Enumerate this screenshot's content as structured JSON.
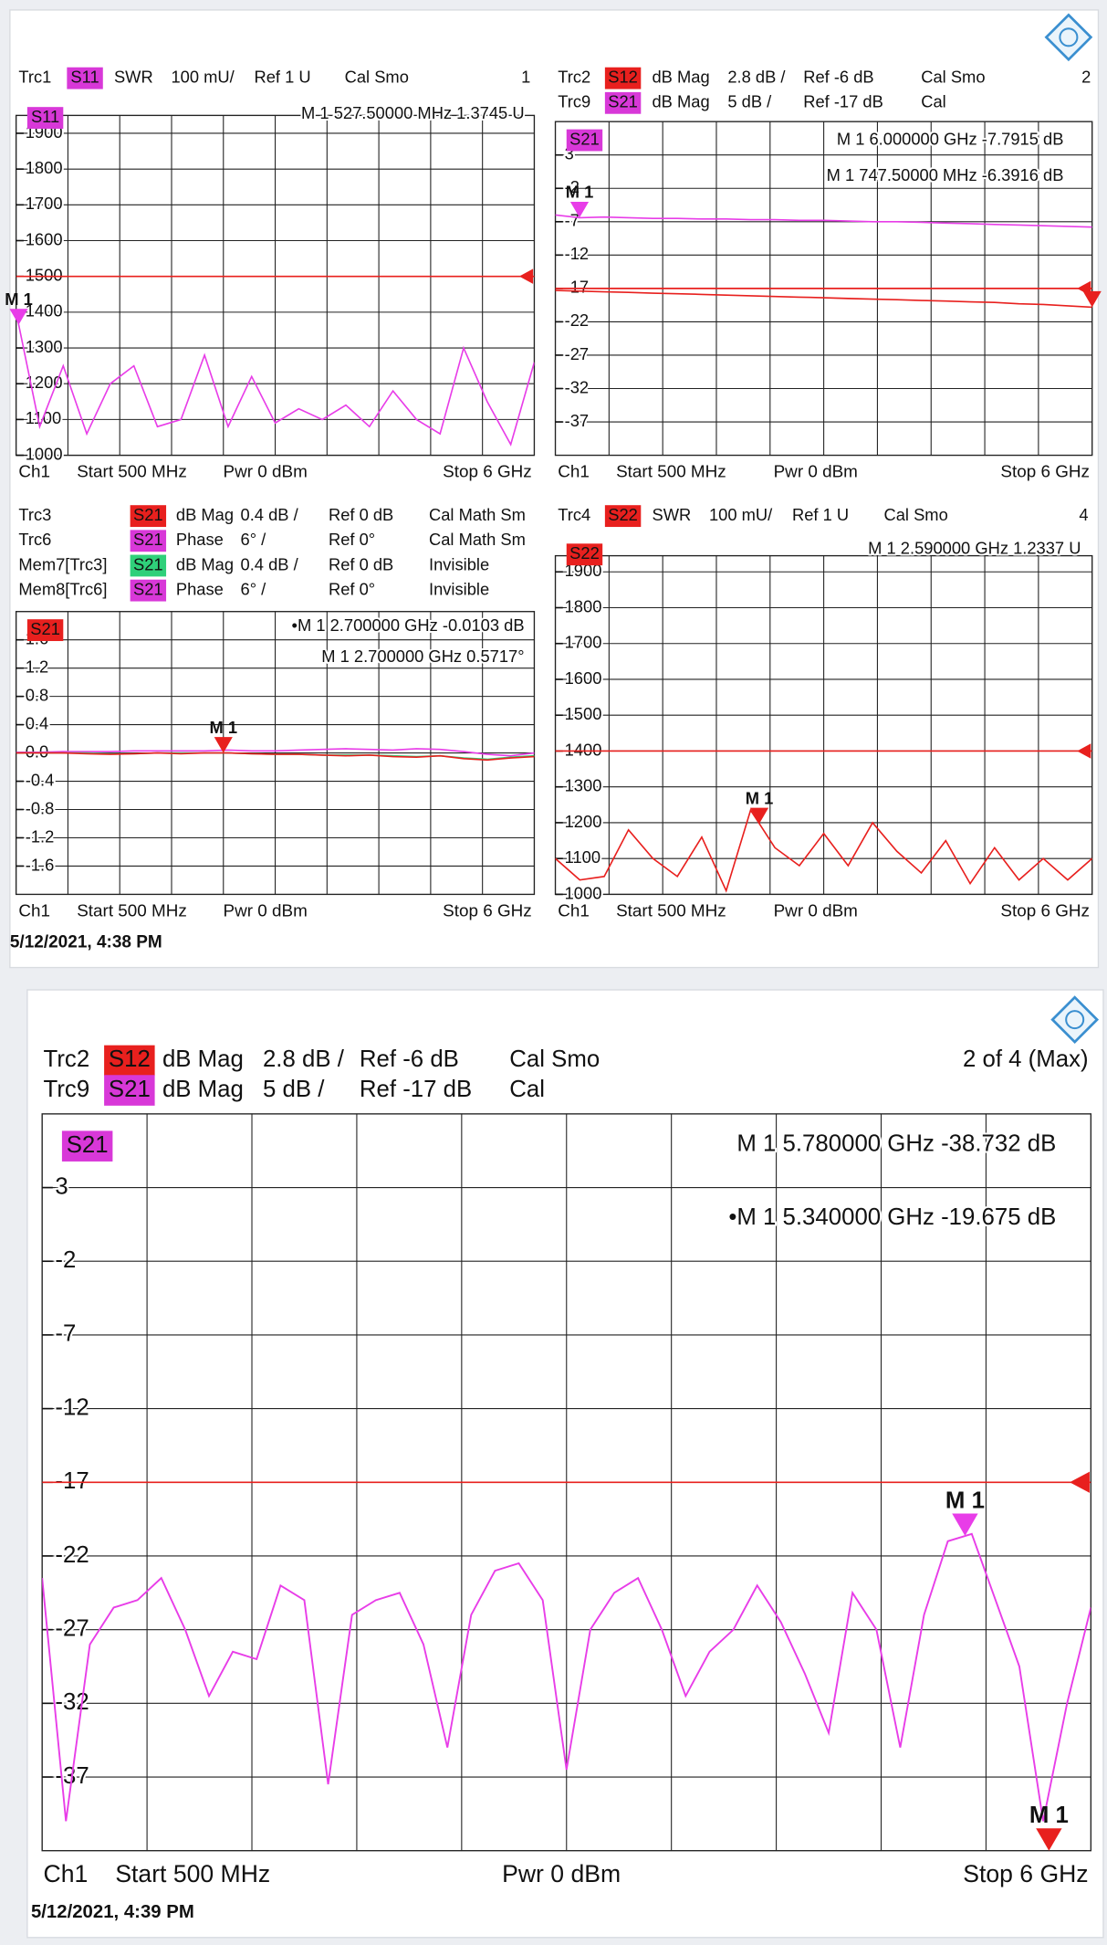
{
  "chart_data": [
    {
      "type": "line",
      "window": "1",
      "badge": "S11",
      "badge_color": "#d838d8",
      "traces": [
        {
          "name": "Trc1",
          "param": "S11",
          "color": "#d838d8",
          "format": "SWR",
          "scale": "100 mU/",
          "ref": "Ref 1 U",
          "status": "Cal Smo"
        }
      ],
      "xlim": [
        0.5,
        6
      ],
      "ylim": [
        1000,
        1950
      ],
      "yticks": [
        1900,
        1800,
        1700,
        1600,
        1500,
        1400,
        1300,
        1200,
        1100,
        1000
      ],
      "ref_line": 1500,
      "ref_color": "#e8201e",
      "x": [
        0.5,
        0.75,
        1,
        1.25,
        1.5,
        1.75,
        2,
        2.25,
        2.5,
        2.75,
        3,
        3.25,
        3.5,
        3.75,
        4,
        4.25,
        4.5,
        4.75,
        5,
        5.25,
        5.5,
        5.75,
        6
      ],
      "series": [
        {
          "color": "#e83de8",
          "values": [
            1400,
            1080,
            1250,
            1060,
            1200,
            1250,
            1080,
            1100,
            1280,
            1080,
            1220,
            1090,
            1130,
            1100,
            1140,
            1080,
            1180,
            1100,
            1060,
            1300,
            1150,
            1030,
            1260
          ]
        }
      ],
      "markers": [
        {
          "label": "M 1",
          "x": 0.5275,
          "color": "#e83de8"
        }
      ],
      "readouts": [
        {
          "text": "M 1 527.50000 MHz 1.3745 U",
          "color": "#e83de8"
        }
      ],
      "footer": {
        "channel": "Ch1",
        "start": "Start 500 MHz",
        "power": "Pwr 0 dBm",
        "stop": "Stop 6 GHz"
      }
    },
    {
      "type": "line",
      "window": "2",
      "badge": "S21",
      "badge_color": "#d838d8",
      "traces": [
        {
          "name": "Trc2",
          "param": "S12",
          "color": "#e8201e",
          "format": "dB Mag",
          "scale": "2.8 dB /",
          "ref": "Ref -6 dB",
          "status": "Cal Smo"
        },
        {
          "name": "Trc9",
          "param": "S21",
          "color": "#d838d8",
          "format": "dB Mag",
          "scale": "5 dB /",
          "ref": "Ref -17 dB",
          "status": "Cal"
        }
      ],
      "xlim": [
        0.5,
        6
      ],
      "ylim": [
        -42,
        8
      ],
      "yticks": [
        3,
        -2,
        -7,
        -12,
        -17,
        -22,
        -27,
        -32,
        -37
      ],
      "ref_line": -17,
      "ref_color": "#e8201e",
      "x": [
        0.5,
        0.75,
        1,
        1.25,
        1.5,
        1.75,
        2,
        2.25,
        2.5,
        2.75,
        3,
        3.25,
        3.5,
        3.75,
        4,
        4.25,
        4.5,
        4.75,
        5,
        5.25,
        5.5,
        5.75,
        6
      ],
      "series": [
        {
          "color": "#e8201e",
          "values": [
            -17.3,
            -17.4,
            -17.5,
            -17.6,
            -17.7,
            -17.8,
            -17.9,
            -18.0,
            -18.1,
            -18.2,
            -18.3,
            -18.4,
            -18.5,
            -18.6,
            -18.7,
            -18.8,
            -18.9,
            -19.0,
            -19.1,
            -19.3,
            -19.4,
            -19.6,
            -19.8
          ]
        },
        {
          "color": "#e83de8",
          "values": [
            -6.0,
            -6.4,
            -6.3,
            -6.4,
            -6.5,
            -6.5,
            -6.6,
            -6.6,
            -6.7,
            -6.7,
            -6.8,
            -6.8,
            -6.9,
            -7.0,
            -7.0,
            -7.1,
            -7.2,
            -7.3,
            -7.4,
            -7.5,
            -7.6,
            -7.7,
            -7.8
          ]
        }
      ],
      "markers": [
        {
          "label": "M 1",
          "x": 0.7475,
          "color": "#e83de8"
        },
        {
          "x": 6,
          "color": "#e8201e"
        }
      ],
      "readouts": [
        {
          "text": "M 1 6.000000 GHz -7.7915 dB",
          "color": "#e8201e"
        },
        {
          "text": "M 1 747.50000 MHz -6.3916 dB",
          "color": "#e83de8"
        }
      ],
      "footer": {
        "channel": "Ch1",
        "start": "Start 500 MHz",
        "power": "Pwr 0 dBm",
        "stop": "Stop 6 GHz"
      }
    },
    {
      "type": "line",
      "badge": "S21",
      "badge_color": "#e8201e",
      "traces": [
        {
          "name": "Trc3",
          "param": "S21",
          "color": "#e8201e",
          "format": "dB Mag",
          "scale": "0.4 dB /",
          "ref": "Ref 0 dB",
          "status": "Cal Math Sm"
        },
        {
          "name": "Trc6",
          "param": "S21",
          "color": "#d838d8",
          "format": "Phase",
          "scale": "6° /",
          "ref": "Ref 0°",
          "status": "Cal Math Sm"
        },
        {
          "name": "Mem7[Trc3]",
          "param": "S21",
          "color": "#2fd07a",
          "format": "dB Mag",
          "scale": "0.4 dB /",
          "ref": "Ref 0 dB",
          "status": "Invisible"
        },
        {
          "name": "Mem8[Trc6]",
          "param": "S21",
          "color": "#d838d8",
          "format": "Phase",
          "scale": "6° /",
          "ref": "Ref 0°",
          "status": "Invisible"
        }
      ],
      "xlim": [
        0.5,
        6
      ],
      "ylim": [
        -2,
        2
      ],
      "yticks": [
        1.6,
        1.2,
        0.8,
        0.4,
        {
          "value": 0,
          "label": "0.0"
        },
        -0.4,
        -0.8,
        -1.2,
        -1.6
      ],
      "x": [
        0.5,
        0.75,
        1,
        1.25,
        1.5,
        1.75,
        2,
        2.25,
        2.5,
        2.75,
        3,
        3.25,
        3.5,
        3.75,
        4,
        4.25,
        4.5,
        4.75,
        5,
        5.25,
        5.5,
        5.75,
        6
      ],
      "series": [
        {
          "color": "#e83de8",
          "values": [
            0.01,
            0.01,
            0.02,
            0.02,
            0.02,
            0.03,
            0.03,
            0.03,
            0.03,
            0.04,
            0.03,
            0.03,
            0.04,
            0.05,
            0.06,
            0.05,
            0.04,
            0.06,
            0.05,
            0.02,
            -0.02,
            -0.04,
            0
          ]
        },
        {
          "color": "#2fd07a",
          "values": [
            0,
            0,
            0,
            0,
            -0.01,
            -0.01,
            0,
            0,
            0,
            0,
            -0.01,
            -0.02,
            -0.02,
            -0.03,
            -0.03,
            -0.03,
            -0.04,
            -0.05,
            -0.04,
            -0.07,
            -0.09,
            -0.06,
            -0.04
          ]
        },
        {
          "color": "#e8201e",
          "values": [
            0,
            0,
            0,
            -0.01,
            -0.02,
            -0.01,
            0,
            -0.01,
            0,
            0,
            -0.01,
            -0.02,
            -0.02,
            -0.03,
            -0.04,
            -0.03,
            -0.05,
            -0.06,
            -0.04,
            -0.08,
            -0.1,
            -0.07,
            -0.05
          ]
        }
      ],
      "markers": [
        {
          "label": "M 1",
          "x": 2.7,
          "color": "#e8201e"
        }
      ],
      "readouts": [
        {
          "text": "•M 1 2.700000 GHz -0.0103 dB",
          "color": "#e8201e"
        },
        {
          "text": "M 1 2.700000 GHz 0.5717°",
          "color": "#e83de8"
        }
      ],
      "footer": {
        "channel": "Ch1",
        "start": "Start 500 MHz",
        "power": "Pwr 0 dBm",
        "stop": "Stop 6 GHz"
      }
    },
    {
      "type": "line",
      "window": "4",
      "badge": "S22",
      "badge_color": "#e8201e",
      "traces": [
        {
          "name": "Trc4",
          "param": "S22",
          "color": "#e8201e",
          "format": "SWR",
          "scale": "100 mU/",
          "ref": "Ref 1 U",
          "status": "Cal Smo"
        }
      ],
      "xlim": [
        0.5,
        6
      ],
      "ylim": [
        1000,
        1945
      ],
      "yticks": [
        1900,
        1800,
        1700,
        1600,
        1500,
        1400,
        1300,
        1200,
        1100,
        1000
      ],
      "ref_line": 1400,
      "ref_color": "#e8201e",
      "x": [
        0.5,
        0.75,
        1,
        1.25,
        1.5,
        1.75,
        2,
        2.25,
        2.5,
        2.75,
        3,
        3.25,
        3.5,
        3.75,
        4,
        4.25,
        4.5,
        4.75,
        5,
        5.25,
        5.5,
        5.75,
        6
      ],
      "series": [
        {
          "color": "#e8201e",
          "values": [
            1100,
            1040,
            1050,
            1180,
            1100,
            1050,
            1160,
            1010,
            1235,
            1130,
            1080,
            1170,
            1080,
            1200,
            1120,
            1060,
            1150,
            1030,
            1130,
            1040,
            1100,
            1040,
            1100
          ]
        }
      ],
      "markers": [
        {
          "label": "M 1",
          "x": 2.59,
          "color": "#e8201e"
        }
      ],
      "readouts": [
        {
          "text": "M 1 2.590000 GHz 1.2337 U",
          "color": "#e8201e"
        }
      ],
      "footer": {
        "channel": "Ch1",
        "start": "Start 500 MHz",
        "power": "Pwr 0 dBm",
        "stop": "Stop 6 GHz"
      }
    },
    {
      "type": "line",
      "window": "2 of 4 (Max)",
      "badge": "S21",
      "badge_color": "#d838d8",
      "traces": [
        {
          "name": "Trc2",
          "param": "S12",
          "color": "#e8201e",
          "format": "dB Mag",
          "scale": "2.8 dB /",
          "ref": "Ref -6 dB",
          "status": "Cal Smo"
        },
        {
          "name": "Trc9",
          "param": "S21",
          "color": "#d838d8",
          "format": "dB Mag",
          "scale": "5 dB /",
          "ref": "Ref -17 dB",
          "status": "Cal"
        }
      ],
      "xlim": [
        0.5,
        6
      ],
      "ylim": [
        -42,
        8
      ],
      "yticks": [
        3,
        -2,
        -7,
        -12,
        -17,
        -22,
        -27,
        -32,
        -37
      ],
      "ref_line": -17,
      "ref_color": "#e8201e",
      "x": [
        0.5,
        0.625,
        0.75,
        0.875,
        1,
        1.125,
        1.25,
        1.375,
        1.5,
        1.625,
        1.75,
        1.875,
        2,
        2.125,
        2.25,
        2.375,
        2.5,
        2.625,
        2.75,
        2.875,
        3,
        3.125,
        3.25,
        3.375,
        3.5,
        3.625,
        3.75,
        3.875,
        4,
        4.125,
        4.25,
        4.375,
        4.5,
        4.625,
        4.75,
        4.875,
        5,
        5.125,
        5.25,
        5.375,
        5.5,
        5.625,
        5.75,
        5.875,
        6
      ],
      "series": [
        {
          "color": "#e83de8",
          "values": [
            -23.5,
            -40,
            -28,
            -25.5,
            -25,
            -23.5,
            -27,
            -31.5,
            -28.5,
            -29,
            -24,
            -25,
            -37.5,
            -26,
            -25,
            -24.5,
            -28,
            -35,
            -26,
            -23,
            -22.5,
            -25,
            -36.5,
            -27,
            -24.5,
            -23.5,
            -27,
            -31.5,
            -28.5,
            -27,
            -24,
            -26.5,
            -30,
            -34,
            -24.5,
            -27,
            -35,
            -26,
            -21,
            -20.5,
            -25,
            -29.5,
            -40,
            -32,
            -25.5
          ]
        }
      ],
      "markers": [
        {
          "label": "M 1",
          "x": 5.34,
          "color": "#e83de8"
        },
        {
          "label": "M 1",
          "x": 5.78,
          "color": "#e8201e"
        }
      ],
      "readouts": [
        {
          "text": "M 1 5.780000 GHz -38.732 dB",
          "color": "#e8201e"
        },
        {
          "text": "•M 1 5.340000 GHz -19.675 dB",
          "color": "#e83de8"
        }
      ],
      "footer": {
        "channel": "Ch1",
        "start": "Start 500 MHz",
        "power": "Pwr 0 dBm",
        "stop": "Stop 6 GHz"
      }
    }
  ],
  "timestamps": [
    "5/12/2021, 4:38 PM",
    "5/12/2021, 4:39 PM"
  ]
}
